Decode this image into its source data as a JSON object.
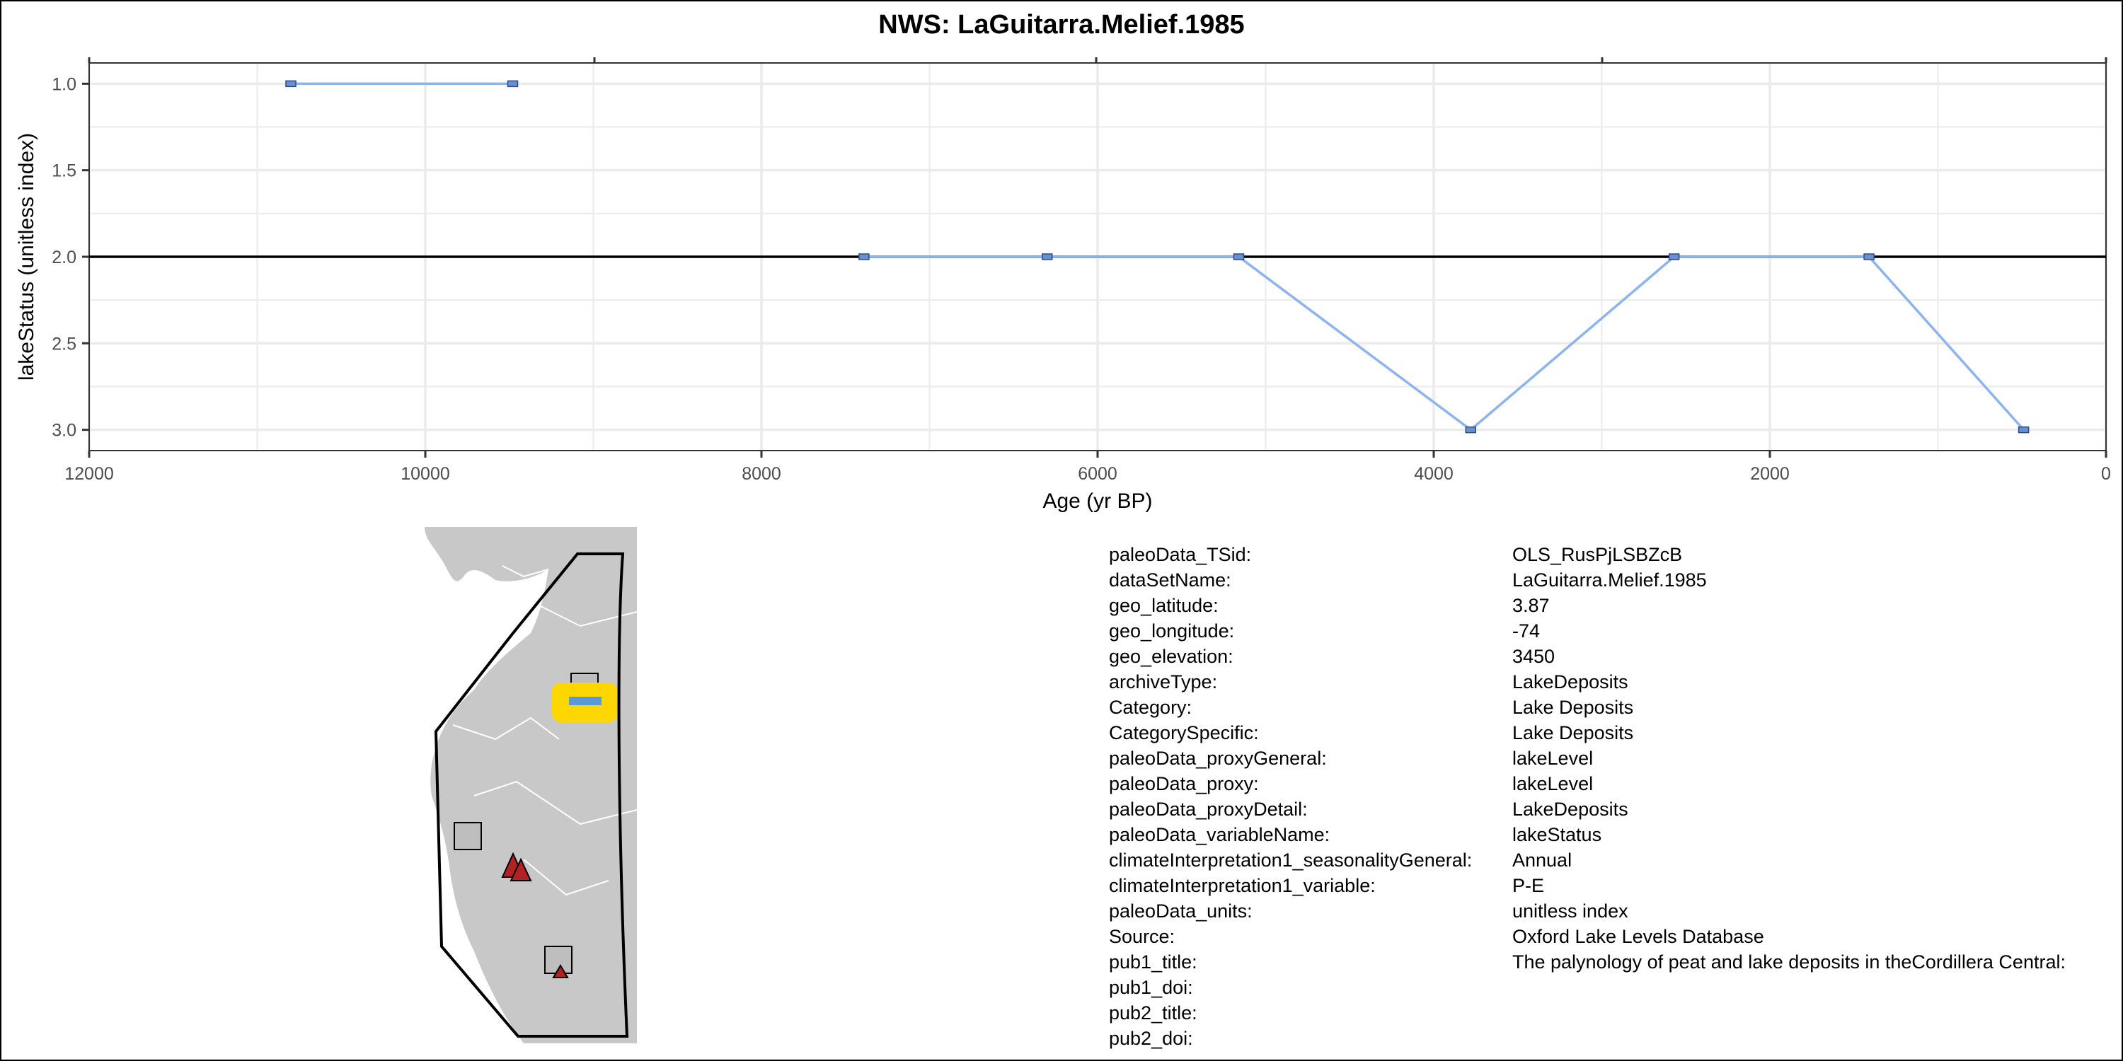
{
  "chart_data": {
    "type": "line",
    "title": "NWS: LaGuitarra.Melief.1985",
    "xlabel": "Age (yr BP)",
    "ylabel": "lakeStatus (unitless index)",
    "xlim": [
      12000,
      0
    ],
    "ylim": [
      3.0,
      1.0
    ],
    "x_reversed": true,
    "y_reversed": true,
    "x_ticks": [
      12000,
      10000,
      8000,
      6000,
      4000,
      2000,
      0
    ],
    "x_tick_labels": [
      "12000",
      "10000",
      "8000",
      "6000",
      "4000",
      "2000",
      "0"
    ],
    "y_ticks": [
      1.0,
      1.5,
      2.0,
      2.5,
      3.0
    ],
    "y_tick_labels": [
      "1.0",
      "1.5",
      "2.0",
      "2.5",
      "3.0"
    ],
    "reference_line_y": 2.0,
    "grid": true,
    "series": [
      {
        "segments": [
          [
            [
              10800,
              1.0
            ],
            [
              9480,
              1.0
            ]
          ],
          [
            [
              7390,
              2.0
            ],
            [
              6300,
              2.0
            ],
            [
              5160,
              2.0
            ],
            [
              3780,
              3.0
            ],
            [
              2570,
              2.0
            ],
            [
              1410,
              2.0
            ],
            [
              490,
              3.0
            ]
          ]
        ]
      }
    ],
    "colors": {
      "line": "#8cb4f0",
      "marker_fill": "#6a8fd0",
      "ref_line": "#000000",
      "grid": "#ebebeb"
    }
  },
  "map": {
    "land_color": "#c8c8c8",
    "site_marker_color": "#5b9bd5",
    "highlight_color": "#ffd700",
    "triangle_color": "#b22222",
    "square_color": "#bebebe"
  },
  "metadata": [
    {
      "key": "paleoData_TSid:",
      "value": "OLS_RusPjLSBZcB"
    },
    {
      "key": "dataSetName:",
      "value": "LaGuitarra.Melief.1985"
    },
    {
      "key": "geo_latitude:",
      "value": "3.87"
    },
    {
      "key": "geo_longitude:",
      "value": "-74"
    },
    {
      "key": "geo_elevation:",
      "value": "3450"
    },
    {
      "key": "archiveType:",
      "value": "LakeDeposits"
    },
    {
      "key": "Category:",
      "value": "Lake Deposits"
    },
    {
      "key": "CategorySpecific:",
      "value": "Lake Deposits"
    },
    {
      "key": "paleoData_proxyGeneral:",
      "value": "lakeLevel"
    },
    {
      "key": "paleoData_proxy:",
      "value": "lakeLevel"
    },
    {
      "key": "paleoData_proxyDetail:",
      "value": "LakeDeposits"
    },
    {
      "key": "paleoData_variableName:",
      "value": "lakeStatus"
    },
    {
      "key": "climateInterpretation1_seasonalityGeneral:",
      "value": "Annual"
    },
    {
      "key": "climateInterpretation1_variable:",
      "value": "P-E"
    },
    {
      "key": "paleoData_units:",
      "value": "unitless index"
    },
    {
      "key": "Source:",
      "value": "Oxford Lake Levels Database"
    },
    {
      "key": "pub1_title:",
      "value": "The palynology of peat and lake deposits in theCordillera Central:"
    },
    {
      "key": "pub1_doi:",
      "value": ""
    },
    {
      "key": "pub2_title:",
      "value": ""
    },
    {
      "key": "pub2_doi:",
      "value": ""
    }
  ]
}
